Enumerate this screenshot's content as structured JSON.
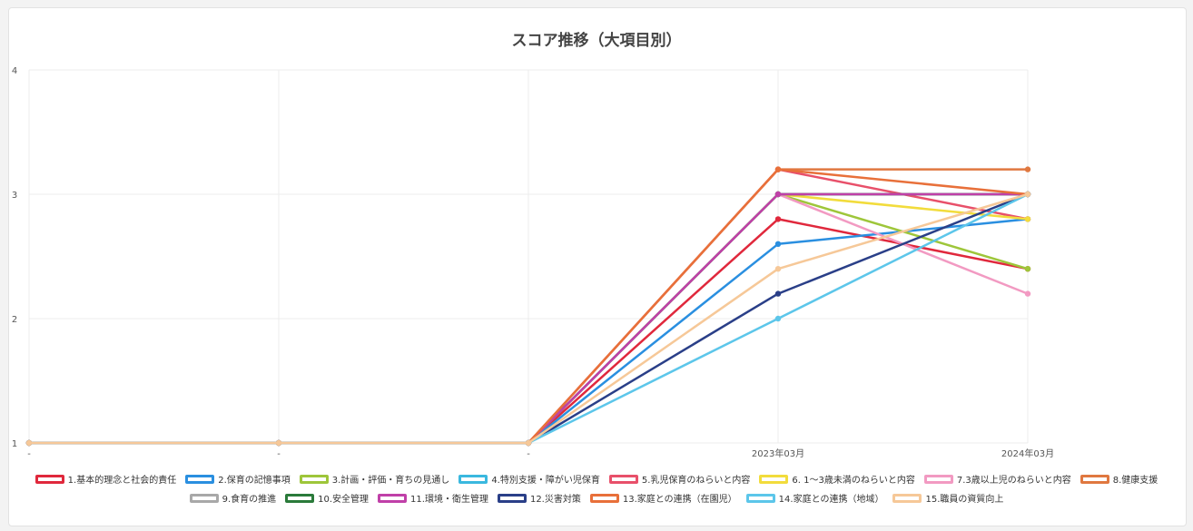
{
  "chart_data": {
    "type": "line",
    "title": "スコア推移（大項目別）",
    "categories": [
      "-",
      "-",
      "-",
      "2023年03月",
      "2024年03月"
    ],
    "y_ticks": [
      1,
      2,
      3,
      4
    ],
    "ylim": [
      1,
      4
    ],
    "grid": true,
    "legend_position": "bottom",
    "series": [
      {
        "name": "1.基本的理念と社会的責任",
        "color": "#e0283c",
        "values": [
          1,
          1,
          1,
          2.8,
          2.4
        ]
      },
      {
        "name": "2.保育の記憶事項",
        "color": "#2a8fe0",
        "values": [
          1,
          1,
          1,
          2.6,
          2.8
        ]
      },
      {
        "name": "3.計画・評価・育ちの見通し",
        "color": "#9ec63a",
        "values": [
          1,
          1,
          1,
          3.0,
          2.4
        ]
      },
      {
        "name": "4.特別支援・障がい児保育",
        "color": "#3ab8df",
        "values": [
          1,
          1,
          1,
          3.0,
          3.0
        ]
      },
      {
        "name": "5.乳児保育のねらいと内容",
        "color": "#e8506a",
        "values": [
          1,
          1,
          1,
          3.2,
          2.8
        ]
      },
      {
        "name": "6. 1～3歳未満のねらいと内容",
        "color": "#f2dc3c",
        "values": [
          1,
          1,
          1,
          3.0,
          2.8
        ]
      },
      {
        "name": "7.3歳以上児のねらいと内容",
        "color": "#f29ac2",
        "values": [
          1,
          1,
          1,
          3.0,
          2.2
        ]
      },
      {
        "name": "8.健康支援",
        "color": "#e07840",
        "values": [
          1,
          1,
          1,
          3.2,
          3.2
        ]
      },
      {
        "name": "9.食育の推進",
        "color": "#a8a8a8",
        "values": [
          1,
          1,
          1,
          3.0,
          3.0
        ]
      },
      {
        "name": "10.安全管理",
        "color": "#2a7a3a",
        "values": [
          1,
          1,
          1,
          3.0,
          3.0
        ]
      },
      {
        "name": "11.環境・衛生管理",
        "color": "#c040a8",
        "values": [
          1,
          1,
          1,
          3.0,
          3.0
        ]
      },
      {
        "name": "12.災害対策",
        "color": "#2a3f88",
        "values": [
          1,
          1,
          1,
          2.2,
          3.0
        ]
      },
      {
        "name": "13.家庭との連携（在園児）",
        "color": "#e8703a",
        "values": [
          1,
          1,
          1,
          3.2,
          3.0
        ]
      },
      {
        "name": "14.家庭との連携（地域）",
        "color": "#5cc6ea",
        "values": [
          1,
          1,
          1,
          2.0,
          3.0
        ]
      },
      {
        "name": "15.職員の資質向上",
        "color": "#f6c898",
        "values": [
          1,
          1,
          1,
          2.4,
          3.0
        ]
      }
    ]
  }
}
